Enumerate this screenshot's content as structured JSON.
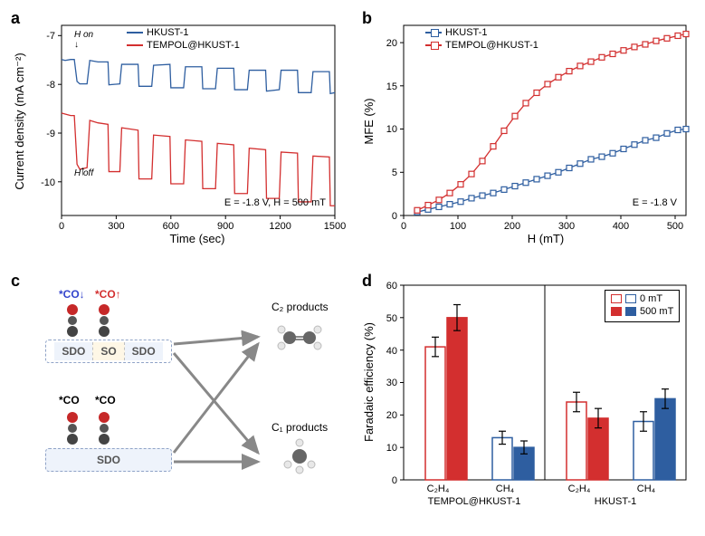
{
  "panelA": {
    "label": "a",
    "type": "line",
    "xlabel": "Time (sec)",
    "ylabel": "Current density (mA cm⁻²)",
    "xlim": [
      0,
      1500
    ],
    "ylim": [
      -10.2,
      -6.3
    ],
    "xticks": [
      0,
      300,
      600,
      900,
      1200,
      1500
    ],
    "yticks": [
      -10,
      -9,
      -8,
      -7
    ],
    "label_fontsize": 13,
    "tick_fontsize": 11,
    "background_color": "#ffffff",
    "series": [
      {
        "name": "HKUST-1",
        "color": "#2e5ea0",
        "data": [
          [
            0,
            -7.0
          ],
          [
            20,
            -7.02
          ],
          [
            50,
            -7.0
          ],
          [
            70,
            -7.0
          ],
          [
            85,
            -7.45
          ],
          [
            100,
            -7.5
          ],
          [
            140,
            -7.5
          ],
          [
            155,
            -7.02
          ],
          [
            200,
            -7.05
          ],
          [
            255,
            -7.05
          ],
          [
            260,
            -7.52
          ],
          [
            320,
            -7.5
          ],
          [
            330,
            -7.1
          ],
          [
            420,
            -7.1
          ],
          [
            425,
            -7.55
          ],
          [
            495,
            -7.55
          ],
          [
            505,
            -7.12
          ],
          [
            595,
            -7.1
          ],
          [
            600,
            -7.58
          ],
          [
            670,
            -7.58
          ],
          [
            680,
            -7.15
          ],
          [
            770,
            -7.15
          ],
          [
            775,
            -7.6
          ],
          [
            845,
            -7.6
          ],
          [
            855,
            -7.18
          ],
          [
            945,
            -7.18
          ],
          [
            950,
            -7.62
          ],
          [
            1020,
            -7.62
          ],
          [
            1030,
            -7.22
          ],
          [
            1120,
            -7.22
          ],
          [
            1125,
            -7.65
          ],
          [
            1195,
            -7.62
          ],
          [
            1205,
            -7.22
          ],
          [
            1295,
            -7.22
          ],
          [
            1300,
            -7.68
          ],
          [
            1370,
            -7.68
          ],
          [
            1380,
            -7.25
          ],
          [
            1470,
            -7.25
          ],
          [
            1475,
            -7.7
          ],
          [
            1500,
            -7.68
          ]
        ]
      },
      {
        "name": "TEMPOL@HKUST-1",
        "color": "#d32f2f",
        "data": [
          [
            0,
            -8.1
          ],
          [
            20,
            -8.12
          ],
          [
            50,
            -8.15
          ],
          [
            70,
            -8.15
          ],
          [
            85,
            -9.15
          ],
          [
            100,
            -9.25
          ],
          [
            140,
            -9.22
          ],
          [
            155,
            -8.25
          ],
          [
            200,
            -8.3
          ],
          [
            255,
            -8.33
          ],
          [
            260,
            -9.3
          ],
          [
            320,
            -9.3
          ],
          [
            330,
            -8.4
          ],
          [
            420,
            -8.45
          ],
          [
            425,
            -9.45
          ],
          [
            495,
            -9.45
          ],
          [
            505,
            -8.55
          ],
          [
            595,
            -8.58
          ],
          [
            600,
            -9.55
          ],
          [
            670,
            -9.55
          ],
          [
            680,
            -8.65
          ],
          [
            770,
            -8.68
          ],
          [
            775,
            -9.65
          ],
          [
            845,
            -9.65
          ],
          [
            855,
            -8.72
          ],
          [
            945,
            -8.75
          ],
          [
            950,
            -9.75
          ],
          [
            1020,
            -9.75
          ],
          [
            1030,
            -8.82
          ],
          [
            1120,
            -8.85
          ],
          [
            1125,
            -9.85
          ],
          [
            1195,
            -9.85
          ],
          [
            1205,
            -8.9
          ],
          [
            1295,
            -8.92
          ],
          [
            1300,
            -9.92
          ],
          [
            1370,
            -9.92
          ],
          [
            1380,
            -8.98
          ],
          [
            1470,
            -9.0
          ],
          [
            1475,
            -10.0
          ],
          [
            1500,
            -10.0
          ]
        ]
      }
    ],
    "annotations": {
      "h_on": "H on",
      "h_off": "H off",
      "condition": "E = -1.8 V, H = 500 mT"
    }
  },
  "panelB": {
    "label": "b",
    "type": "scatter-line",
    "xlabel": "H (mT)",
    "ylabel": "MFE (%)",
    "xlim": [
      0,
      520
    ],
    "ylim": [
      0,
      22
    ],
    "xticks": [
      0,
      100,
      200,
      300,
      400,
      500
    ],
    "yticks": [
      0,
      5,
      10,
      15,
      20
    ],
    "label_fontsize": 13,
    "tick_fontsize": 11,
    "marker": "open-square",
    "marker_size": 6,
    "series": [
      {
        "name": "HKUST-1",
        "color": "#2e5ea0",
        "data": [
          [
            25,
            0.4
          ],
          [
            45,
            0.7
          ],
          [
            65,
            1.0
          ],
          [
            85,
            1.3
          ],
          [
            105,
            1.6
          ],
          [
            125,
            2.0
          ],
          [
            145,
            2.3
          ],
          [
            165,
            2.6
          ],
          [
            185,
            3.0
          ],
          [
            205,
            3.4
          ],
          [
            225,
            3.8
          ],
          [
            245,
            4.2
          ],
          [
            265,
            4.6
          ],
          [
            285,
            5.0
          ],
          [
            305,
            5.5
          ],
          [
            325,
            6.0
          ],
          [
            345,
            6.5
          ],
          [
            365,
            6.8
          ],
          [
            385,
            7.2
          ],
          [
            405,
            7.7
          ],
          [
            425,
            8.2
          ],
          [
            445,
            8.7
          ],
          [
            465,
            9.0
          ],
          [
            485,
            9.5
          ],
          [
            505,
            9.9
          ],
          [
            520,
            10.0
          ]
        ]
      },
      {
        "name": "TEMPOL@HKUST-1",
        "color": "#d32f2f",
        "data": [
          [
            25,
            0.6
          ],
          [
            45,
            1.2
          ],
          [
            65,
            1.8
          ],
          [
            85,
            2.6
          ],
          [
            105,
            3.6
          ],
          [
            125,
            4.8
          ],
          [
            145,
            6.3
          ],
          [
            165,
            8.0
          ],
          [
            185,
            9.8
          ],
          [
            205,
            11.5
          ],
          [
            225,
            13.0
          ],
          [
            245,
            14.2
          ],
          [
            265,
            15.2
          ],
          [
            285,
            16.0
          ],
          [
            305,
            16.7
          ],
          [
            325,
            17.3
          ],
          [
            345,
            17.8
          ],
          [
            365,
            18.3
          ],
          [
            385,
            18.7
          ],
          [
            405,
            19.1
          ],
          [
            425,
            19.5
          ],
          [
            445,
            19.8
          ],
          [
            465,
            20.2
          ],
          [
            485,
            20.5
          ],
          [
            505,
            20.8
          ],
          [
            520,
            21.0
          ]
        ]
      }
    ],
    "annotations": {
      "condition": "E = -1.8 V"
    }
  },
  "panelC": {
    "label": "c",
    "type": "infographic",
    "co_labels": {
      "down": "*CO↓",
      "up": "*CO↑",
      "plain1": "*CO",
      "plain2": "*CO"
    },
    "colors": {
      "down": "#3344cc",
      "up": "#d32f2f",
      "plain": "#222222",
      "oxygen": "#c62828",
      "carbon": "#555555",
      "hydrogen": "#e0e0e0",
      "metal": "#444444",
      "arrow": "#888888"
    },
    "boxes": {
      "top": [
        "SDO",
        "SO",
        "SDO"
      ],
      "bottom_single": "SDO"
    },
    "c2_label": "C₂ products",
    "c1_label": "C₁ products"
  },
  "panelD": {
    "label": "d",
    "type": "bar",
    "ylabel": "Faradaic efficiency (%)",
    "ylim": [
      0,
      60
    ],
    "yticks": [
      0,
      10,
      20,
      30,
      40,
      50,
      60
    ],
    "label_fontsize": 13,
    "tick_fontsize": 11,
    "legend": [
      {
        "name": "0 mT",
        "fill": "#ffffff",
        "border_red": "#d32f2f",
        "border_blue": "#2e5ea0"
      },
      {
        "name": "500 mT",
        "fill_red": "#d32f2f",
        "fill_blue": "#2e5ea0"
      }
    ],
    "groups": [
      {
        "catalyst": "TEMPOL@HKUST-1",
        "bars": [
          {
            "product": "C₂H₄",
            "cond": "0 mT",
            "value": 41,
            "err": 3,
            "color": "#d32f2f",
            "fill": "#ffffff"
          },
          {
            "product": "C₂H₄",
            "cond": "500 mT",
            "value": 50,
            "err": 4,
            "color": "#d32f2f",
            "fill": "#d32f2f"
          },
          {
            "product": "CH₄",
            "cond": "0 mT",
            "value": 13,
            "err": 2,
            "color": "#2e5ea0",
            "fill": "#ffffff"
          },
          {
            "product": "CH₄",
            "cond": "500 mT",
            "value": 10,
            "err": 2,
            "color": "#2e5ea0",
            "fill": "#2e5ea0"
          }
        ]
      },
      {
        "catalyst": "HKUST-1",
        "bars": [
          {
            "product": "C₂H₄",
            "cond": "0 mT",
            "value": 24,
            "err": 3,
            "color": "#d32f2f",
            "fill": "#ffffff"
          },
          {
            "product": "C₂H₄",
            "cond": "500 mT",
            "value": 19,
            "err": 3,
            "color": "#d32f2f",
            "fill": "#d32f2f"
          },
          {
            "product": "CH₄",
            "cond": "0 mT",
            "value": 18,
            "err": 3,
            "color": "#2e5ea0",
            "fill": "#ffffff"
          },
          {
            "product": "CH₄",
            "cond": "500 mT",
            "value": 25,
            "err": 3,
            "color": "#2e5ea0",
            "fill": "#2e5ea0"
          }
        ]
      }
    ],
    "product_labels": [
      "C₂H₄",
      "CH₄",
      "C₂H₄",
      "CH₄"
    ]
  }
}
